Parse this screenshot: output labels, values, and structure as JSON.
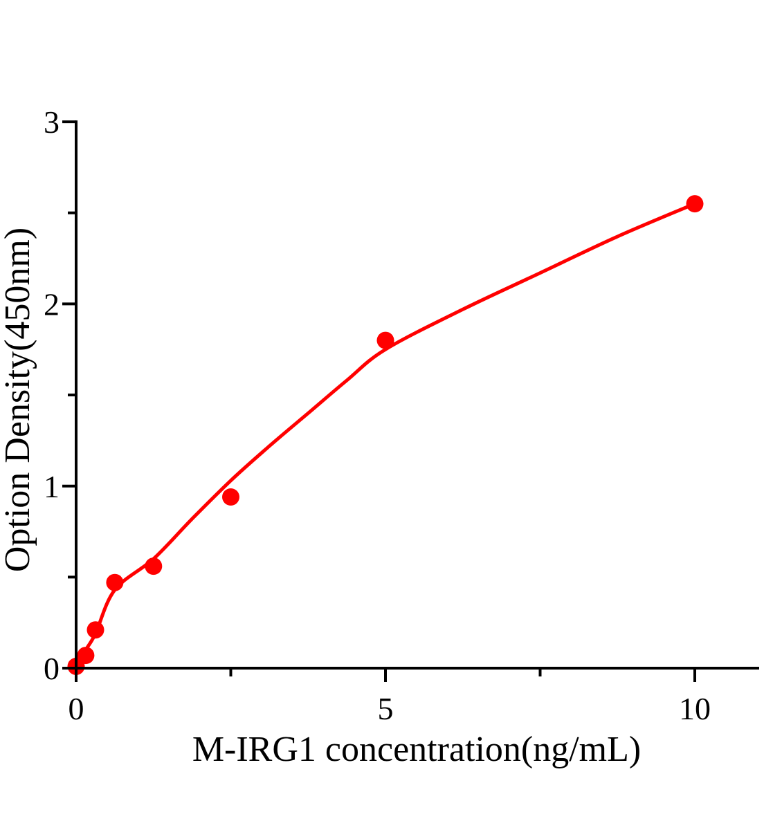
{
  "chart_data": {
    "type": "scatter",
    "title": "",
    "xlabel": "M-IRG1 concentration(ng/mL)",
    "ylabel": "Option Density(450nm)",
    "xlim": [
      0,
      11.05
    ],
    "ylim": [
      0,
      3
    ],
    "grid": false,
    "legend": null,
    "axis_color": "#000000",
    "point_color": "#ff0000",
    "curve_color": "#ff0000",
    "x_major_ticks": [
      {
        "value": 0,
        "label": "0"
      },
      {
        "value": 5,
        "label": "5"
      },
      {
        "value": 10,
        "label": "10"
      }
    ],
    "x_minor_ticks": [
      2.5,
      7.5
    ],
    "y_major_ticks": [
      {
        "value": 0,
        "label": "0"
      },
      {
        "value": 1,
        "label": "1"
      },
      {
        "value": 2,
        "label": "2"
      },
      {
        "value": 3,
        "label": "3"
      }
    ],
    "y_minor_ticks": [
      0.5,
      1.5,
      2.5
    ],
    "points": [
      [
        0,
        0.01
      ],
      [
        0.156,
        0.07
      ],
      [
        0.313,
        0.21
      ],
      [
        0.625,
        0.47
      ],
      [
        1.25,
        0.56
      ],
      [
        2.5,
        0.94
      ],
      [
        5,
        1.8
      ],
      [
        10,
        2.55
      ]
    ],
    "curve": [
      [
        0,
        0.0
      ],
      [
        0.156,
        0.1
      ],
      [
        0.313,
        0.19
      ],
      [
        0.625,
        0.43
      ],
      [
        1.25,
        0.6
      ],
      [
        1.875,
        0.82
      ],
      [
        2.5,
        1.03
      ],
      [
        3.125,
        1.22
      ],
      [
        3.75,
        1.4
      ],
      [
        4.375,
        1.58
      ],
      [
        5,
        1.75
      ],
      [
        6.25,
        1.97
      ],
      [
        7.5,
        2.17
      ],
      [
        8.75,
        2.37
      ],
      [
        10,
        2.55
      ]
    ]
  }
}
